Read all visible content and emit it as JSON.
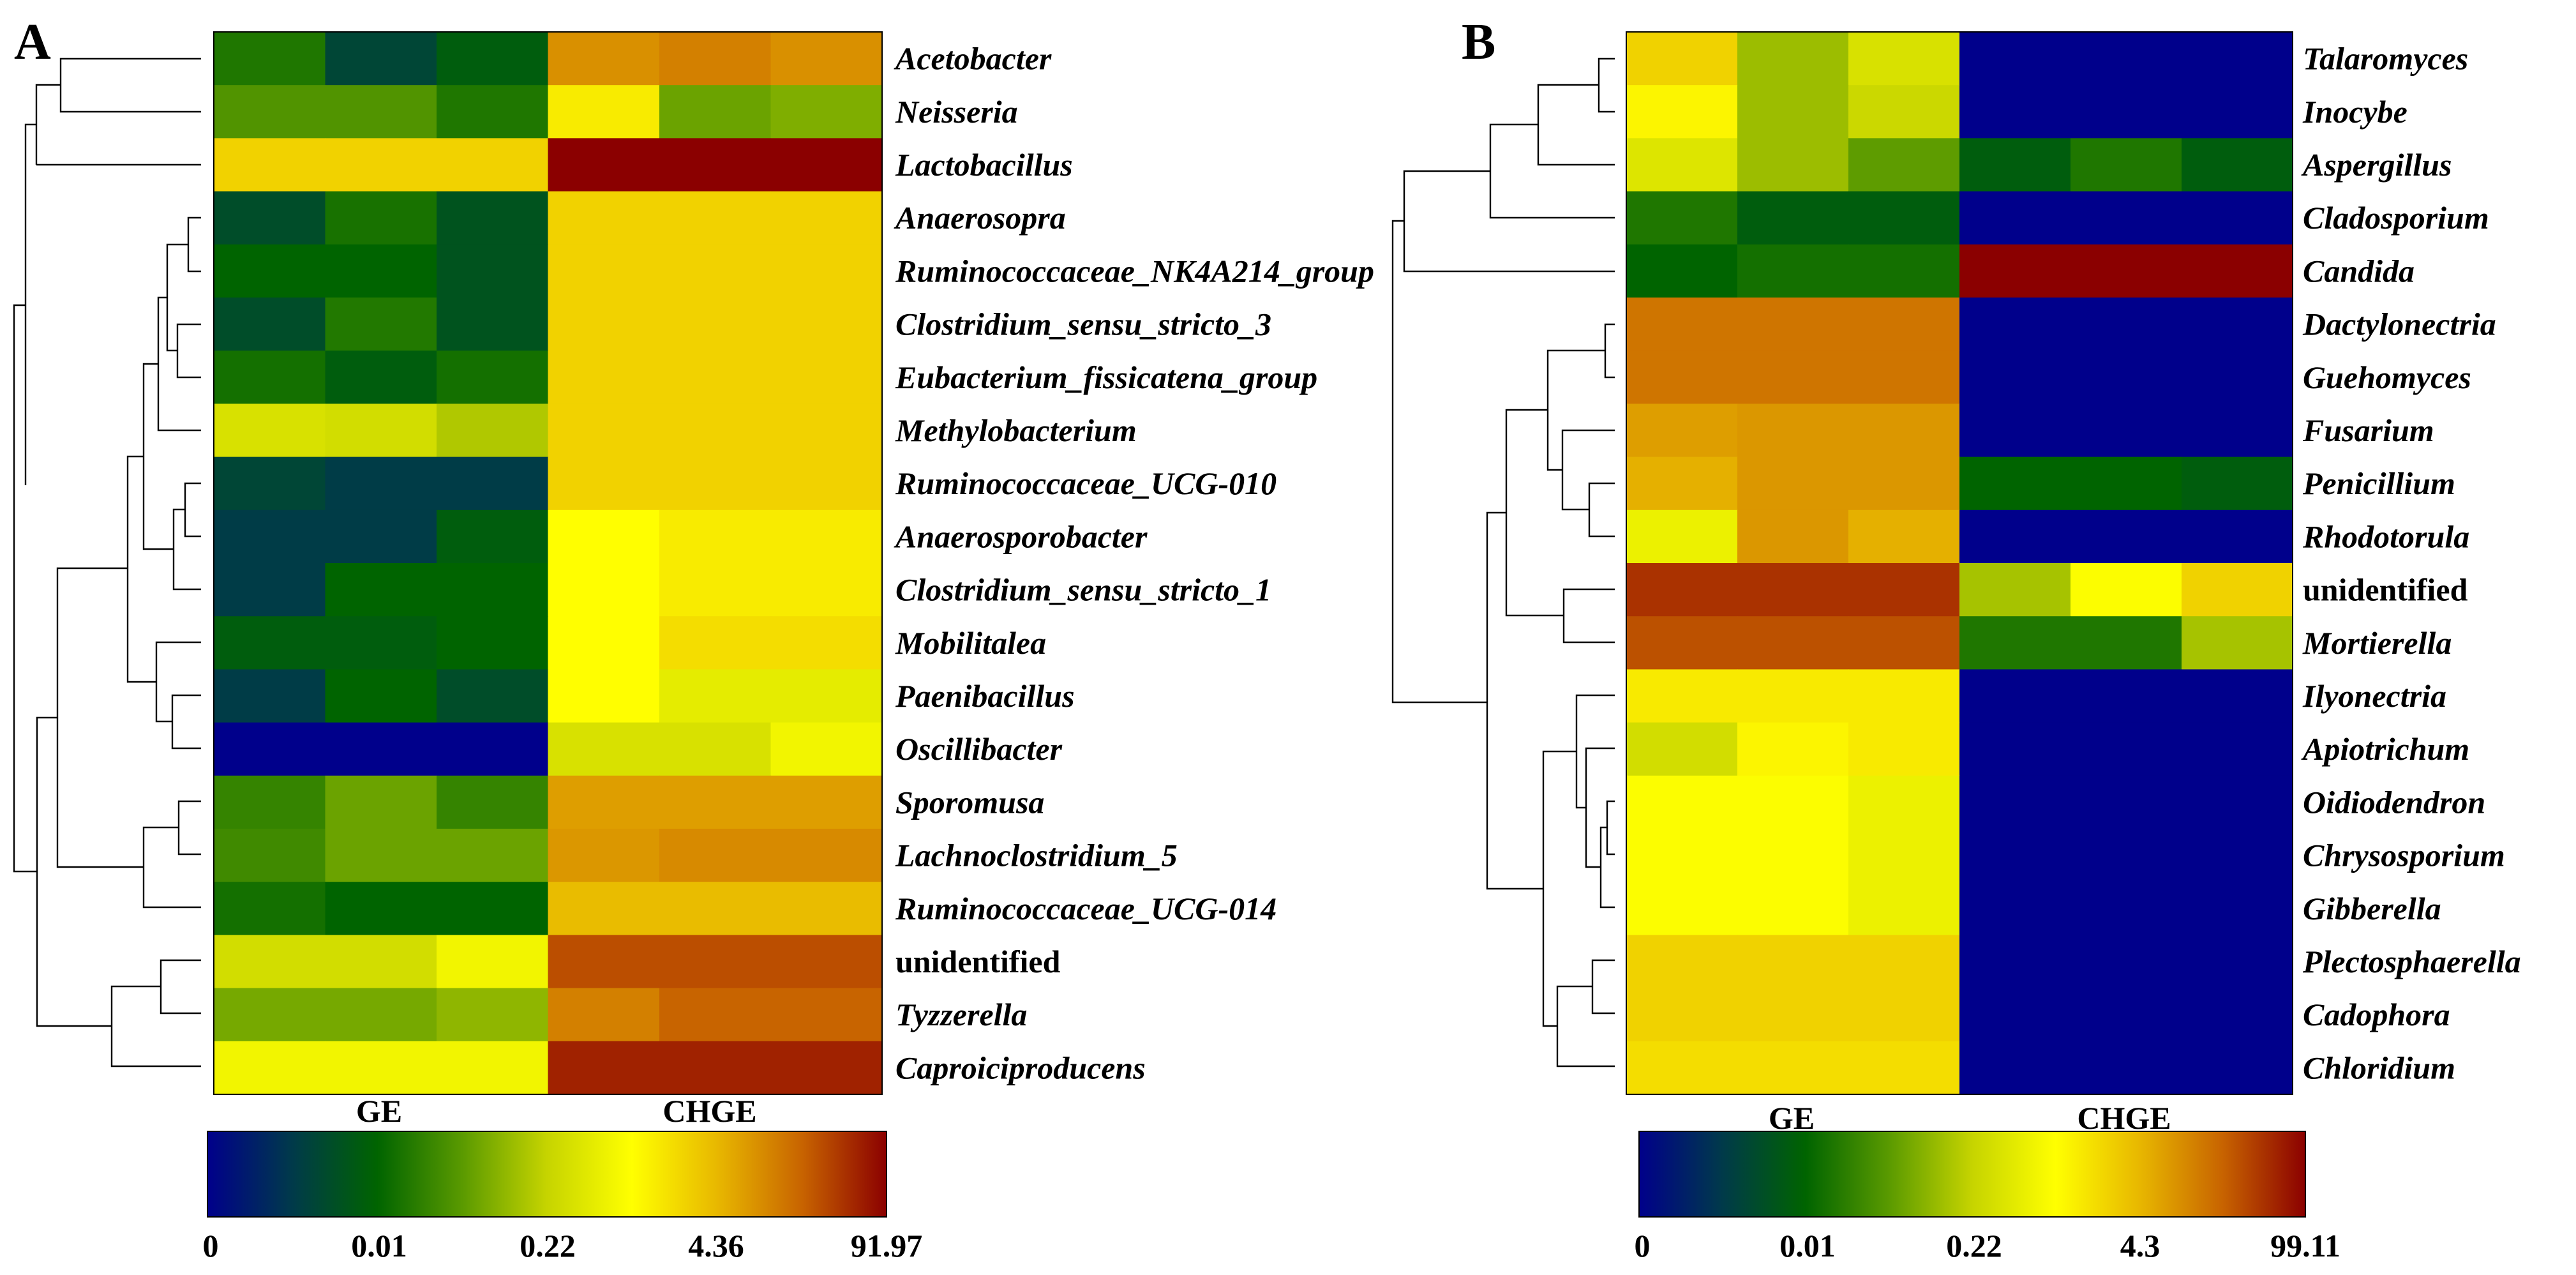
{
  "chart_data": [
    {
      "type": "heatmap",
      "panel": "A",
      "title": "",
      "groups": [
        "GE",
        "GE",
        "GE",
        "CHGE",
        "CHGE",
        "CHGE"
      ],
      "group_labels": [
        "GE",
        "CHGE"
      ],
      "rows": [
        "Acetobacter",
        "Neisseria",
        "Lactobacillus",
        "Anaerosopra",
        "Ruminococcaceae_NK4A214_group",
        "Clostridium_sensu_stricto_3",
        "Eubacterium_fissicatena_group",
        "Methylobacterium",
        "Ruminococcaceae_UCG-010",
        "Anaerosporobacter",
        "Clostridium_sensu_stricto_1",
        "Mobilitalea",
        "Paenibacillus",
        "Oscillibacter",
        "Sporomusa",
        "Lachnoclostridium_5",
        "Ruminococcaceae_UCG-014",
        "unidentified",
        "Tyzzerella",
        "Caproiciproducens"
      ],
      "italic": [
        true,
        true,
        true,
        true,
        true,
        true,
        true,
        true,
        true,
        true,
        true,
        true,
        true,
        true,
        true,
        true,
        true,
        false,
        true,
        true
      ],
      "values": [
        [
          0.017,
          0.004,
          0.008,
          9.0,
          12.0,
          9.0
        ],
        [
          0.04,
          0.04,
          0.017,
          1.5,
          0.06,
          0.08
        ],
        [
          2.5,
          2.5,
          2.5,
          92.0,
          92.0,
          92.0
        ],
        [
          0.005,
          0.015,
          0.006,
          2.5,
          2.5,
          2.5
        ],
        [
          0.01,
          0.01,
          0.006,
          2.5,
          2.5,
          2.5
        ],
        [
          0.005,
          0.018,
          0.006,
          2.5,
          2.5,
          2.5
        ],
        [
          0.014,
          0.008,
          0.014,
          2.5,
          2.5,
          2.5
        ],
        [
          0.35,
          0.3,
          0.16,
          2.5,
          2.5,
          2.5
        ],
        [
          0.004,
          0.003,
          0.003,
          2.5,
          2.5,
          2.5
        ],
        [
          0.003,
          0.003,
          0.008,
          1.0,
          1.5,
          1.5
        ],
        [
          0.003,
          0.01,
          0.01,
          1.0,
          1.5,
          1.5
        ],
        [
          0.008,
          0.008,
          0.01,
          1.0,
          2.0,
          2.0
        ],
        [
          0.003,
          0.01,
          0.005,
          1.0,
          0.5,
          0.5
        ],
        [
          0.0,
          0.0,
          0.0,
          0.35,
          0.35,
          0.7
        ],
        [
          0.025,
          0.06,
          0.025,
          7.0,
          7.0,
          7.0
        ],
        [
          0.03,
          0.06,
          0.06,
          8.0,
          10.0,
          10.0
        ],
        [
          0.014,
          0.01,
          0.01,
          4.0,
          4.0,
          4.0
        ],
        [
          0.3,
          0.3,
          0.7,
          28.0,
          28.0,
          28.0
        ],
        [
          0.07,
          0.07,
          0.1,
          12.0,
          20.0,
          20.0
        ],
        [
          0.7,
          0.7,
          0.7,
          55.0,
          55.0,
          55.0
        ]
      ],
      "colorbar": {
        "min": 0,
        "max": 91.97,
        "ticks": [
          "0",
          "0.01",
          "0.22",
          "4.36",
          "91.97"
        ]
      }
    },
    {
      "type": "heatmap",
      "panel": "B",
      "title": "",
      "groups": [
        "GE",
        "GE",
        "GE",
        "CHGE",
        "CHGE",
        "CHGE"
      ],
      "group_labels": [
        "GE",
        "CHGE"
      ],
      "rows": [
        "Talaromyces",
        "Inocybe",
        "Aspergillus",
        "Cladosporium",
        "Candida",
        "Dactylonectria",
        "Guehomyces",
        "Fusarium",
        "Penicillium",
        "Rhodotorula",
        "unidentified",
        "Mortierella",
        "Ilyonectria",
        "Apiotrichum",
        "Oidiodendron",
        "Chrysosporium",
        "Gibberella",
        "Plectosphaerella",
        "Cadophora",
        "Chloridium"
      ],
      "italic": [
        true,
        true,
        true,
        true,
        true,
        true,
        true,
        true,
        true,
        true,
        false,
        true,
        true,
        true,
        true,
        true,
        true,
        true,
        true,
        true
      ],
      "values": [
        [
          2.5,
          0.12,
          0.35,
          0.0,
          0.0,
          0.0
        ],
        [
          1.2,
          0.12,
          0.25,
          0.0,
          0.0,
          0.0
        ],
        [
          0.4,
          0.12,
          0.05,
          0.008,
          0.017,
          0.008
        ],
        [
          0.017,
          0.008,
          0.008,
          0.0,
          0.0,
          0.0
        ],
        [
          0.01,
          0.014,
          0.014,
          99.1,
          99.1,
          99.1
        ],
        [
          15.0,
          15.0,
          15.0,
          0.0,
          0.0,
          0.0
        ],
        [
          15.0,
          15.0,
          15.0,
          0.0,
          0.0,
          0.0
        ],
        [
          7.0,
          8.0,
          8.0,
          0.0,
          0.0,
          0.0
        ],
        [
          5.0,
          8.0,
          8.0,
          0.01,
          0.01,
          0.008
        ],
        [
          0.6,
          8.0,
          5.0,
          0.0,
          0.0,
          0.0
        ],
        [
          45.0,
          45.0,
          45.0,
          0.14,
          0.9,
          2.5
        ],
        [
          28.0,
          28.0,
          28.0,
          0.017,
          0.017,
          0.14
        ],
        [
          1.5,
          1.5,
          1.5,
          0.0,
          0.0,
          0.0
        ],
        [
          0.3,
          1.2,
          1.5,
          0.0,
          0.0,
          0.0
        ],
        [
          0.9,
          0.9,
          0.6,
          0.0,
          0.0,
          0.0
        ],
        [
          0.9,
          0.9,
          0.6,
          0.0,
          0.0,
          0.0
        ],
        [
          0.9,
          0.9,
          0.6,
          0.0,
          0.0,
          0.0
        ],
        [
          2.5,
          2.5,
          2.5,
          0.0,
          0.0,
          0.0
        ],
        [
          2.5,
          2.5,
          2.5,
          0.0,
          0.0,
          0.0
        ],
        [
          2.0,
          2.0,
          2.0,
          0.0,
          0.0,
          0.0
        ]
      ],
      "colorbar": {
        "min": 0,
        "max": 99.11,
        "ticks": [
          "0",
          "0.01",
          "0.22",
          "4.3",
          "99.11"
        ]
      }
    }
  ],
  "colors": {
    "scale": [
      "#00008b",
      "#003a4a",
      "#006400",
      "#5a9a00",
      "#c6d400",
      "#ffff00",
      "#e8b800",
      "#c86400",
      "#8b0000"
    ]
  }
}
